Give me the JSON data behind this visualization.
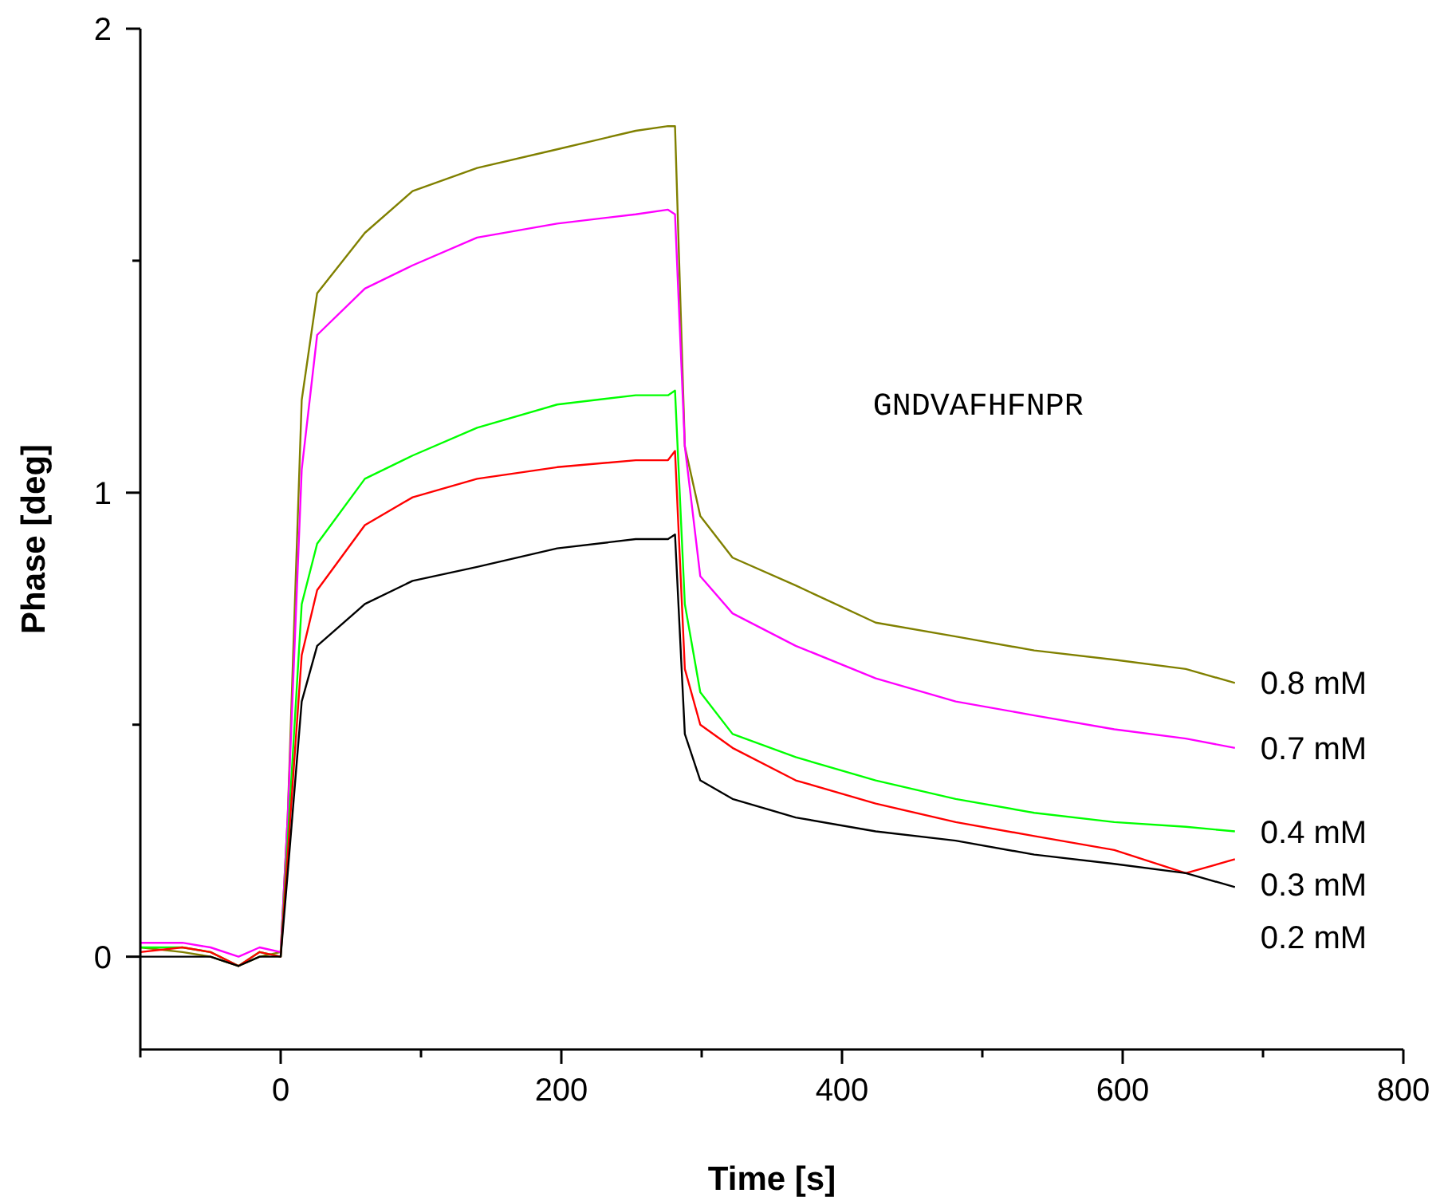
{
  "chart_data": {
    "type": "line",
    "xlabel": "Time [s]",
    "ylabel": "Phase [deg]",
    "annotations": [
      "GNDVAFHFNPR"
    ],
    "xlim": [
      -100,
      800
    ],
    "ylim": [
      -0.2,
      2
    ],
    "xticks": [
      {
        "value": -100,
        "label": null
      },
      0,
      {
        "value": 100,
        "label": null
      },
      200,
      {
        "value": 300,
        "label": null
      },
      400,
      {
        "value": 500,
        "label": null
      },
      600,
      {
        "value": 700,
        "label": null
      },
      800
    ],
    "yticks": [
      0,
      {
        "value": 0.5,
        "label": null
      },
      1,
      {
        "value": 1.5,
        "label": null
      },
      2
    ],
    "grid": false,
    "marker": "none",
    "line_style": "solid",
    "x": [
      -100,
      -70,
      -50,
      -30,
      -15,
      0,
      5,
      15,
      26,
      60,
      94,
      140,
      197,
      253,
      276,
      281,
      288,
      299,
      322,
      367,
      424,
      481,
      537,
      594,
      645,
      680
    ],
    "series": [
      {
        "name": "0.8 mM",
        "color": "#808000",
        "values": [
          0.02,
          0.01,
          0.0,
          -0.02,
          0.0,
          0.01,
          0.3,
          1.2,
          1.43,
          1.56,
          1.65,
          1.7,
          1.74,
          1.78,
          1.79,
          1.79,
          1.1,
          0.95,
          0.86,
          0.8,
          0.72,
          0.69,
          0.66,
          0.64,
          0.62,
          0.59
        ]
      },
      {
        "name": "0.7 mM",
        "color": "#ff00ff",
        "values": [
          0.03,
          0.03,
          0.02,
          0.0,
          0.02,
          0.01,
          0.3,
          1.05,
          1.34,
          1.44,
          1.49,
          1.55,
          1.58,
          1.6,
          1.61,
          1.6,
          1.1,
          0.82,
          0.74,
          0.67,
          0.6,
          0.55,
          0.52,
          0.49,
          0.47,
          0.45
        ]
      },
      {
        "name": "0.4 mM",
        "color": "#00ff00",
        "values": [
          0.02,
          0.02,
          0.01,
          -0.02,
          0.01,
          0.0,
          0.25,
          0.76,
          0.89,
          1.03,
          1.08,
          1.14,
          1.19,
          1.21,
          1.21,
          1.22,
          0.76,
          0.57,
          0.48,
          0.43,
          0.38,
          0.34,
          0.31,
          0.29,
          0.28,
          0.27
        ]
      },
      {
        "name": "0.3 mM",
        "color": "#ff0000",
        "values": [
          0.01,
          0.02,
          0.01,
          -0.02,
          0.01,
          0.0,
          0.22,
          0.65,
          0.79,
          0.93,
          0.99,
          1.03,
          1.055,
          1.07,
          1.07,
          1.09,
          0.62,
          0.5,
          0.45,
          0.38,
          0.33,
          0.29,
          0.26,
          0.23,
          0.18,
          0.21
        ]
      },
      {
        "name": "0.2 mM",
        "color": "#000000",
        "values": [
          0.0,
          0.0,
          0.0,
          -0.02,
          0.0,
          0.0,
          0.18,
          0.55,
          0.67,
          0.76,
          0.81,
          0.84,
          0.88,
          0.9,
          0.9,
          0.91,
          0.48,
          0.38,
          0.34,
          0.3,
          0.27,
          0.25,
          0.22,
          0.2,
          0.18,
          0.15
        ]
      }
    ]
  }
}
